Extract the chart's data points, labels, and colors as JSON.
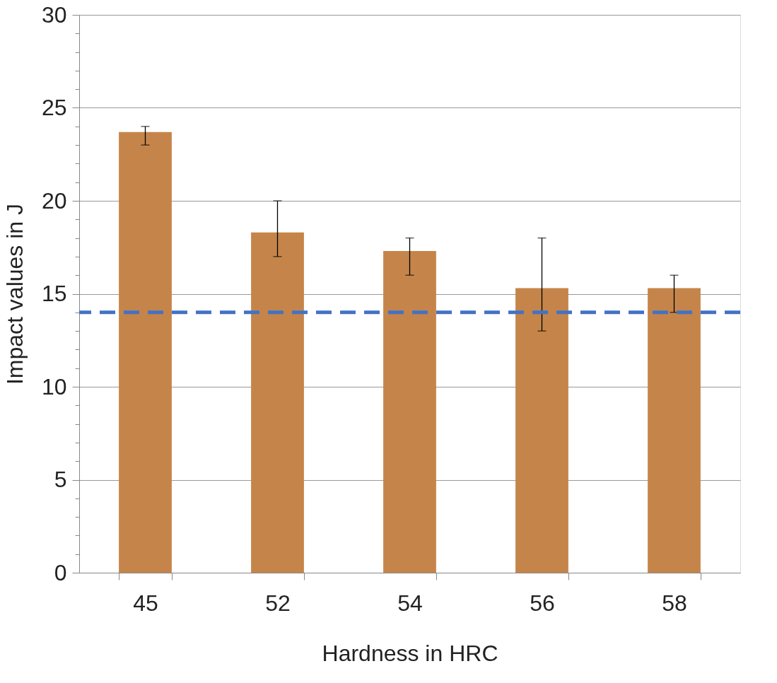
{
  "chart_data": {
    "type": "bar",
    "xlabel": "Hardness in HRC",
    "ylabel": "Impact values in J",
    "categories": [
      "45",
      "52",
      "54",
      "56",
      "58"
    ],
    "values": [
      23.7,
      18.3,
      17.3,
      15.3,
      15.3
    ],
    "color": "#c5854a",
    "errors": [
      [
        23,
        24
      ],
      [
        17,
        20
      ],
      [
        16,
        18
      ],
      [
        13,
        18
      ],
      [
        14,
        16
      ]
    ],
    "ylim": [
      0,
      30
    ],
    "yticks": [
      0,
      {
        "value": 1,
        "label": null
      },
      {
        "value": 2,
        "label": null
      },
      {
        "value": 3,
        "label": null
      },
      {
        "value": 4,
        "label": null
      },
      5,
      {
        "value": 6,
        "label": null
      },
      {
        "value": 7,
        "label": null
      },
      {
        "value": 8,
        "label": null
      },
      {
        "value": 9,
        "label": null
      },
      10,
      {
        "value": 11,
        "label": null
      },
      {
        "value": 12,
        "label": null
      },
      {
        "value": 13,
        "label": null
      },
      {
        "value": 14,
        "label": null
      },
      15,
      {
        "value": 16,
        "label": null
      },
      {
        "value": 17,
        "label": null
      },
      {
        "value": 18,
        "label": null
      },
      {
        "value": 19,
        "label": null
      },
      20,
      {
        "value": 21,
        "label": null
      },
      {
        "value": 22,
        "label": null
      },
      {
        "value": 23,
        "label": null
      },
      {
        "value": 24,
        "label": null
      },
      25,
      {
        "value": 26,
        "label": null
      },
      {
        "value": 27,
        "label": null
      },
      {
        "value": 28,
        "label": null
      },
      {
        "value": 29,
        "label": null
      },
      30
    ],
    "ref_lines": [
      {
        "axis": "y",
        "value": 14,
        "color": "#4472c4",
        "line_style": "dashed"
      }
    ],
    "grid": "y"
  }
}
